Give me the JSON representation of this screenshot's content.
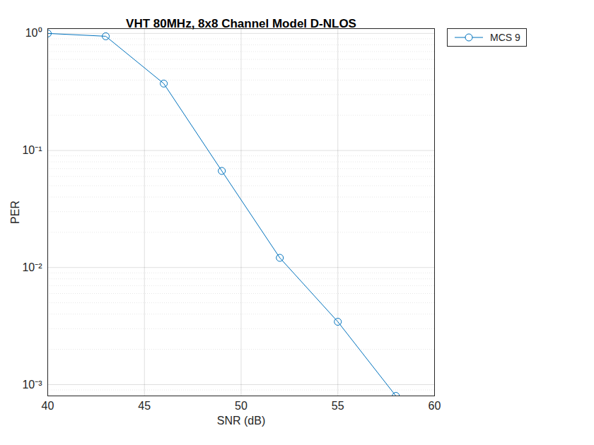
{
  "chart_data": {
    "type": "line",
    "title": "VHT 80MHz, 8x8 Channel Model D-NLOS",
    "x_label": "SNR (dB)",
    "y_label": "PER",
    "x": [
      40,
      43,
      46,
      49,
      52,
      55,
      58
    ],
    "series": [
      {
        "name": "MCS 9",
        "color": "#0072bd",
        "marker": "circle",
        "line_style": "solid",
        "values": [
          1,
          0.946,
          0.373,
          0.0669,
          0.0121,
          0.00344,
          0.0008
        ]
      }
    ],
    "xlim": [
      40,
      60
    ],
    "xticks": [
      40,
      45,
      50,
      55,
      60
    ],
    "ylim": [
      0.0008,
      1.1
    ],
    "yticks": [
      {
        "value": 0.001,
        "label": "10⁻³"
      },
      {
        "value": 0.01,
        "label": "10⁻²"
      },
      {
        "value": 0.1,
        "label": "10⁻¹"
      },
      {
        "value": 1,
        "label": "10⁰"
      }
    ],
    "log": "y",
    "grid": true,
    "legend": "northeastoutside"
  }
}
